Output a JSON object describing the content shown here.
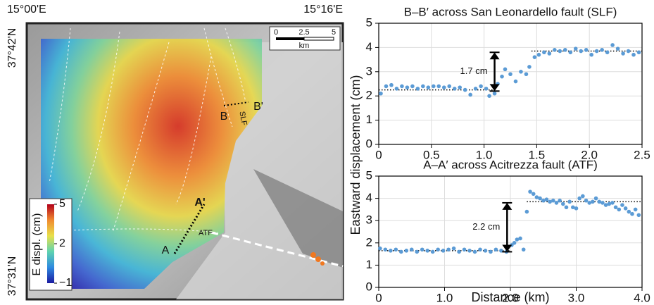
{
  "map": {
    "lon_labels": [
      "15°00'E",
      "15°16'E"
    ],
    "lat_labels": [
      "37°42'N",
      "37°31'N"
    ],
    "scale": {
      "ticks": [
        "0",
        "2.5",
        "5"
      ],
      "unit": "km"
    },
    "colorbar": {
      "title": "E displ. (cm)",
      "ticks": [
        5,
        2,
        {
          "value": -1,
          "label": "−1"
        }
      ],
      "lim": [
        -1,
        5
      ]
    },
    "profile_labels": [
      "B",
      "B'",
      "SLF",
      "A",
      "A'",
      "ATF"
    ]
  },
  "chart_data": [
    {
      "type": "scatter",
      "title": "B–B′ across San Leonardello fault (SLF)",
      "y_label": "Eastward displacement (cm)",
      "color": "#5b9bd5",
      "x": [
        0.02,
        0.07,
        0.12,
        0.17,
        0.22,
        0.27,
        0.32,
        0.37,
        0.42,
        0.47,
        0.52,
        0.57,
        0.62,
        0.67,
        0.72,
        0.77,
        0.82,
        0.87,
        0.92,
        0.97,
        1.02,
        1.05,
        1.1,
        1.13,
        1.17,
        1.2,
        1.25,
        1.3,
        1.35,
        1.4,
        1.43,
        1.48,
        1.52,
        1.57,
        1.62,
        1.67,
        1.72,
        1.77,
        1.82,
        1.87,
        1.92,
        1.97,
        2.02,
        2.07,
        2.12,
        2.17,
        2.22,
        2.27,
        2.32,
        2.37,
        2.42,
        2.47
      ],
      "values": [
        2.1,
        2.4,
        2.45,
        2.3,
        2.4,
        2.35,
        2.4,
        2.3,
        2.4,
        2.35,
        2.4,
        2.4,
        2.35,
        2.4,
        2.3,
        2.35,
        2.25,
        2.05,
        2.3,
        2.4,
        2.3,
        2.0,
        2.1,
        2.5,
        2.8,
        3.1,
        2.9,
        2.6,
        3.0,
        2.9,
        3.2,
        3.6,
        3.7,
        3.8,
        3.75,
        3.9,
        3.85,
        3.9,
        3.8,
        3.95,
        3.85,
        3.9,
        3.7,
        3.85,
        3.9,
        3.8,
        4.1,
        3.95,
        3.75,
        3.85,
        3.7,
        3.8
      ],
      "mean_lines": [
        {
          "y": 2.25,
          "x": [
            0,
            1.1
          ]
        },
        {
          "y": 3.85,
          "x": [
            1.45,
            2.5
          ]
        }
      ],
      "offset": {
        "text": "1.7 cm",
        "x": 1.1,
        "y": [
          2.2,
          3.8
        ]
      },
      "xlim": [
        0,
        2.5
      ],
      "xticks": [
        0,
        0.5,
        {
          "value": 1,
          "label": "1.0"
        },
        1.5,
        {
          "value": 2,
          "label": "2.0"
        },
        2.5
      ],
      "ylim": [
        0,
        5
      ],
      "yticks": [
        0,
        1,
        2,
        3,
        4,
        5
      ],
      "grid": true
    },
    {
      "type": "scatter",
      "title": "A–A′ across Acitrezza fault (ATF)",
      "x_label": "Distance (km)",
      "color": "#5b9bd5",
      "x": [
        0.02,
        0.1,
        0.18,
        0.26,
        0.34,
        0.42,
        0.5,
        0.58,
        0.66,
        0.74,
        0.82,
        0.9,
        0.98,
        1.06,
        1.14,
        1.22,
        1.3,
        1.38,
        1.46,
        1.54,
        1.62,
        1.7,
        1.78,
        1.86,
        1.94,
        2.02,
        2.06,
        2.1,
        2.15,
        2.2,
        2.25,
        2.3,
        2.35,
        2.4,
        2.45,
        2.5,
        2.55,
        2.6,
        2.65,
        2.7,
        2.75,
        2.8,
        2.85,
        2.9,
        2.95,
        3.0,
        3.05,
        3.1,
        3.15,
        3.2,
        3.25,
        3.3,
        3.35,
        3.4,
        3.45,
        3.5,
        3.55,
        3.6,
        3.65,
        3.7,
        3.75,
        3.8,
        3.85,
        3.9,
        3.95
      ],
      "values": [
        1.75,
        1.7,
        1.65,
        1.7,
        1.6,
        1.65,
        1.7,
        1.6,
        1.7,
        1.65,
        1.6,
        1.7,
        1.65,
        1.7,
        1.75,
        1.6,
        1.7,
        1.65,
        1.6,
        1.7,
        1.65,
        1.6,
        1.7,
        1.65,
        1.6,
        1.9,
        2.0,
        2.15,
        2.2,
        1.7,
        3.4,
        4.3,
        4.2,
        4.05,
        4.0,
        3.9,
        3.95,
        3.85,
        3.9,
        3.8,
        3.9,
        3.75,
        3.6,
        3.85,
        3.6,
        3.55,
        4.0,
        4.1,
        3.9,
        3.8,
        3.85,
        4.0,
        3.85,
        3.8,
        3.7,
        3.75,
        3.8,
        3.6,
        3.5,
        3.7,
        3.55,
        3.4,
        3.3,
        3.5,
        3.25
      ],
      "mean_lines": [
        {
          "y": 1.65,
          "x": [
            0,
            2.0
          ]
        },
        {
          "y": 3.85,
          "x": [
            2.25,
            4.0
          ]
        }
      ],
      "offset": {
        "text": "2.2 cm",
        "x": 1.95,
        "y": [
          1.6,
          3.8
        ]
      },
      "xlim": [
        0,
        4
      ],
      "xticks": [
        0,
        {
          "value": 1,
          "label": "1.0"
        },
        {
          "value": 2,
          "label": "2.0"
        },
        {
          "value": 3,
          "label": "3.0"
        },
        {
          "value": 4,
          "label": "4.0"
        }
      ],
      "ylim": [
        0,
        5
      ],
      "yticks": [
        0,
        1,
        2,
        3,
        4,
        5
      ],
      "grid": true
    }
  ]
}
